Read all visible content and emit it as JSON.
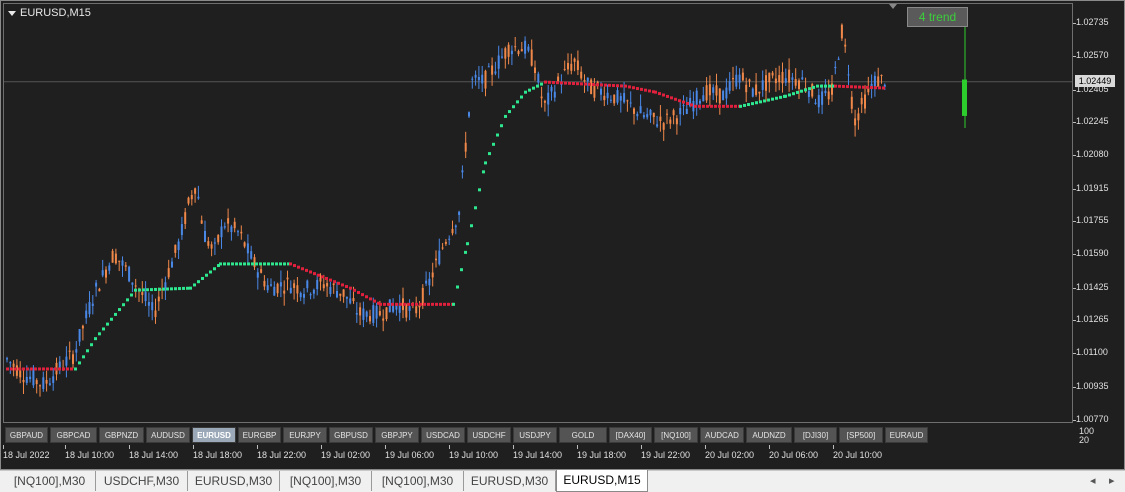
{
  "chart": {
    "symbol_title": "EURUSD,M15",
    "trend_badge": "4 trend",
    "current_price": "1.02449",
    "price_axis": [
      "1.02735",
      "1.02570",
      "1.02405",
      "1.02245",
      "1.02080",
      "1.01915",
      "1.01755",
      "1.01590",
      "1.01425",
      "1.01265",
      "1.01100",
      "1.00935",
      "1.00770"
    ],
    "time_axis": [
      "18 Jul 2022",
      "18 Jul 10:00",
      "18 Jul 14:00",
      "18 Jul 18:00",
      "18 Jul 22:00",
      "19 Jul 02:00",
      "19 Jul 06:00",
      "19 Jul 10:00",
      "19 Jul 14:00",
      "19 Jul 18:00",
      "19 Jul 22:00",
      "20 Jul 02:00",
      "20 Jul 06:00",
      "20 Jul 10:00"
    ],
    "subwindow_scale": [
      "100",
      "20"
    ],
    "colors": {
      "background": "#1f1f1f",
      "bull_candle": "#4a88e8",
      "bear_candle": "#f0884a",
      "trend_up": "#2ee890",
      "trend_down": "#e0203c",
      "trend_bar": "#2ccd2c",
      "price_line": "#555555"
    }
  },
  "symbol_buttons": [
    "GBPAUD",
    "GBPCAD",
    "GBPNZD",
    "AUDUSD",
    "EURUSD",
    "EURGBP",
    "EURJPY",
    "GBPUSD",
    "GBPJPY",
    "USDCAD",
    "USDCHF",
    "USDJPY",
    "GOLD",
    "[DAX40]",
    "[NQ100]",
    "AUDCAD",
    "AUDNZD",
    "[DJI30]",
    "[SP500]",
    "EURAUD"
  ],
  "active_symbol": "EURUSD",
  "tabs": [
    "[NQ100],M30",
    "USDCHF,M30",
    "EURUSD,M30",
    "[NQ100],M30",
    "[NQ100],M30",
    "EURUSD,M30",
    "EURUSD,M15"
  ],
  "active_tab": "EURUSD,M15",
  "tab_scroll": {
    "left_icon": "◂",
    "right_icon": "▸"
  }
}
